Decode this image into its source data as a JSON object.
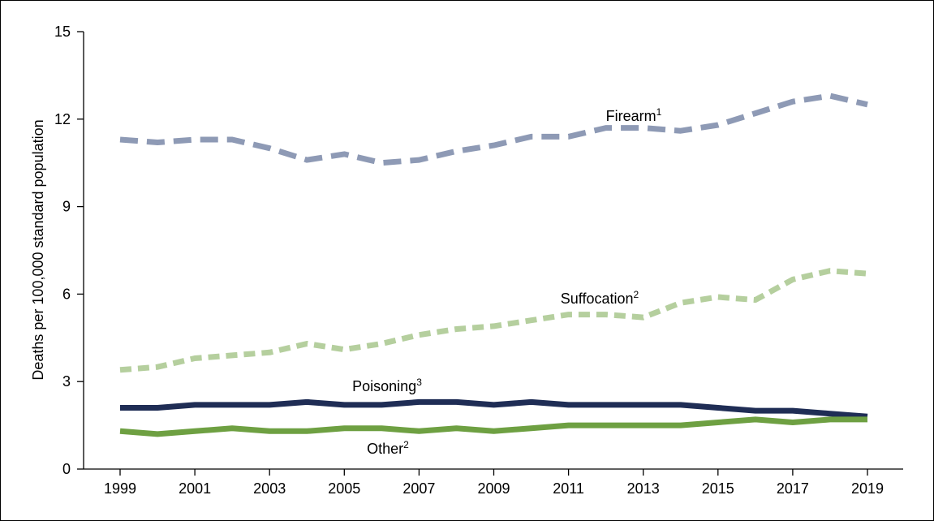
{
  "chart_data": {
    "type": "line",
    "title": "",
    "xlabel": "",
    "ylabel": "Deaths per 100,000 standard population",
    "ylim": [
      0,
      15
    ],
    "yticks": [
      0,
      3,
      6,
      9,
      12,
      15
    ],
    "xlim": [
      1999,
      2019
    ],
    "xticks": [
      1999,
      2001,
      2003,
      2005,
      2007,
      2009,
      2011,
      2013,
      2015,
      2017,
      2019
    ],
    "x": [
      1999,
      2000,
      2001,
      2002,
      2003,
      2004,
      2005,
      2006,
      2007,
      2008,
      2009,
      2010,
      2011,
      2012,
      2013,
      2014,
      2015,
      2016,
      2017,
      2018,
      2019
    ],
    "grid": false,
    "legend": "inline labels",
    "series": [
      {
        "name": "Firearm",
        "sup": "1",
        "color": "#8e9ab5",
        "style": "dashed",
        "values": [
          11.3,
          11.2,
          11.3,
          11.3,
          11.0,
          10.6,
          10.8,
          10.5,
          10.6,
          10.9,
          11.1,
          11.4,
          11.4,
          11.7,
          11.7,
          11.6,
          11.8,
          12.2,
          12.6,
          12.8,
          12.5
        ]
      },
      {
        "name": "Suffocation",
        "sup": "2",
        "color": "#b5cf9e",
        "style": "dotted",
        "values": [
          3.4,
          3.5,
          3.8,
          3.9,
          4.0,
          4.3,
          4.1,
          4.3,
          4.6,
          4.8,
          4.9,
          5.1,
          5.3,
          5.3,
          5.2,
          5.7,
          5.9,
          5.8,
          6.5,
          6.8,
          6.7
        ]
      },
      {
        "name": "Poisoning",
        "sup": "3",
        "color": "#1f2d55",
        "style": "solid",
        "values": [
          2.1,
          2.1,
          2.2,
          2.2,
          2.2,
          2.3,
          2.2,
          2.2,
          2.3,
          2.3,
          2.2,
          2.3,
          2.2,
          2.2,
          2.2,
          2.2,
          2.1,
          2.0,
          2.0,
          1.9,
          1.8
        ]
      },
      {
        "name": "Other",
        "sup": "2",
        "color": "#6ea042",
        "style": "solid",
        "values": [
          1.3,
          1.2,
          1.3,
          1.4,
          1.3,
          1.3,
          1.4,
          1.4,
          1.3,
          1.4,
          1.3,
          1.4,
          1.5,
          1.5,
          1.5,
          1.5,
          1.6,
          1.7,
          1.6,
          1.7,
          1.7
        ]
      }
    ]
  }
}
